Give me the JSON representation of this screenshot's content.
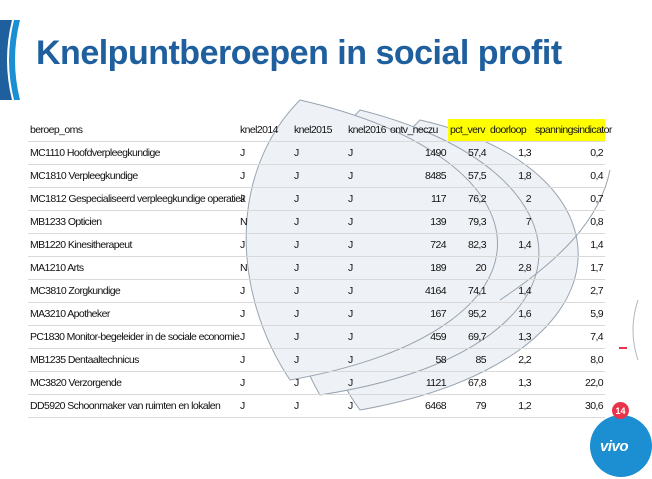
{
  "slide": {
    "title": "Knelpuntberoepen in social profit",
    "page_number": "14",
    "logo_text": "vivo"
  },
  "colors": {
    "title": "#1f5f9e",
    "highlight": "#ffff00",
    "badge": "#e8334b",
    "logo": "#1b8fd1"
  },
  "table": {
    "headers": [
      "beroep_oms",
      "knel2014",
      "knel2015",
      "knel2016",
      "ontv_neczu",
      "pct_verv",
      "doorloop",
      "spanningsindicator"
    ],
    "highlighted_headers": [
      "pct_verv",
      "doorloop",
      "spanningsindicator"
    ],
    "rows": [
      [
        "MC1110 Hoofdverpleegkundige",
        "J",
        "J",
        "J",
        "1490",
        "57,4",
        "1,3",
        "0,2"
      ],
      [
        "MC1810 Verpleegkundige",
        "J",
        "J",
        "J",
        "8485",
        "57,5",
        "1,8",
        "0,4"
      ],
      [
        "MC1812 Gespecialiseerd verpleegkundige operatiek",
        "J",
        "J",
        "J",
        "117",
        "76,2",
        "2",
        "0,7"
      ],
      [
        "MB1233 Opticien",
        "N",
        "J",
        "J",
        "139",
        "79,3",
        "7",
        "0,8"
      ],
      [
        "MB1220 Kinesitherapeut",
        "J",
        "J",
        "J",
        "724",
        "82,3",
        "1,4",
        "1,4"
      ],
      [
        "MA1210 Arts",
        "N",
        "J",
        "J",
        "189",
        "20",
        "2,8",
        "1,7"
      ],
      [
        "MC3810 Zorgkundige",
        "J",
        "J",
        "J",
        "4164",
        "74,1",
        "1,4",
        "2,7"
      ],
      [
        "MA3210 Apotheker",
        "J",
        "J",
        "J",
        "167",
        "95,2",
        "1,6",
        "5,9"
      ],
      [
        "PC1830 Monitor-begeleider in de sociale economie",
        "J",
        "J",
        "J",
        "459",
        "69,7",
        "1,3",
        "7,4"
      ],
      [
        "MB1235 Dentaaltechnicus",
        "J",
        "J",
        "J",
        "58",
        "85",
        "2,2",
        "8,0"
      ],
      [
        "MC3820 Verzorgende",
        "J",
        "J",
        "J",
        "1121",
        "67,8",
        "1,3",
        "22,0"
      ],
      [
        "DD5920 Schoonmaker van ruimten en lokalen",
        "J",
        "J",
        "J",
        "6468",
        "79",
        "1,2",
        "30,6"
      ]
    ]
  }
}
